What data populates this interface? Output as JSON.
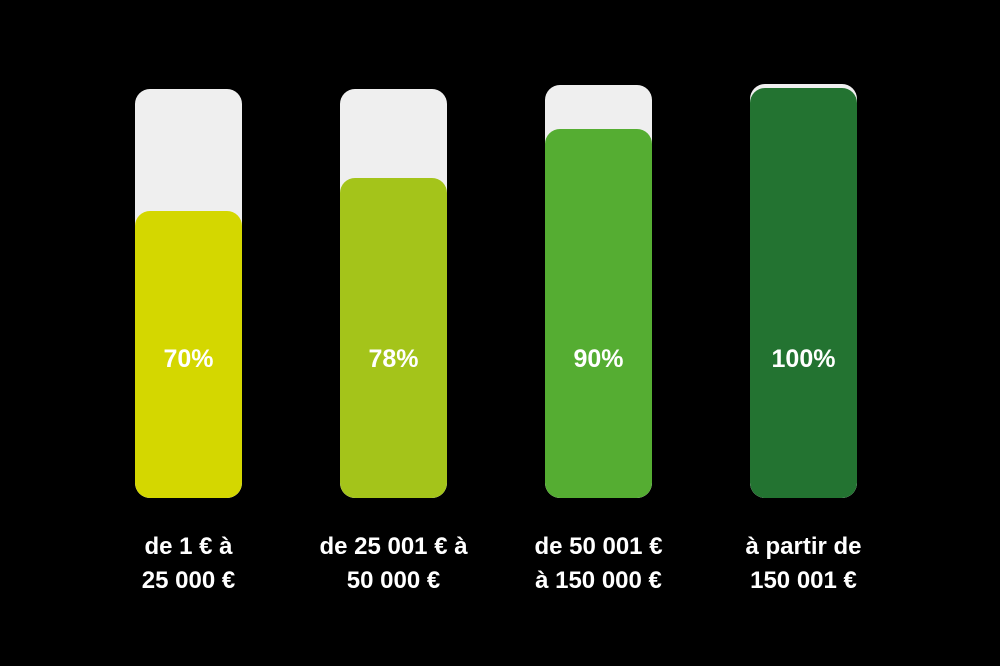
{
  "chart_data": {
    "type": "bar",
    "categories": [
      [
        "de 1 € à",
        "25 000 €"
      ],
      [
        "de 25 001 € à",
        "50 000 €"
      ],
      [
        "de 50 001 €",
        "à 150 000 €"
      ],
      [
        "à partir de",
        "150 001 €"
      ]
    ],
    "values": [
      70,
      78,
      90,
      100
    ],
    "value_labels": [
      "70%",
      "78%",
      "90%",
      "100%"
    ],
    "ylim": [
      0,
      100
    ],
    "colors": [
      "#d4d700",
      "#a4c41a",
      "#55ad32",
      "#237331"
    ],
    "track_color": "#efefef",
    "title": "",
    "xlabel": "",
    "ylabel": "",
    "grid": false,
    "legend": "none"
  }
}
